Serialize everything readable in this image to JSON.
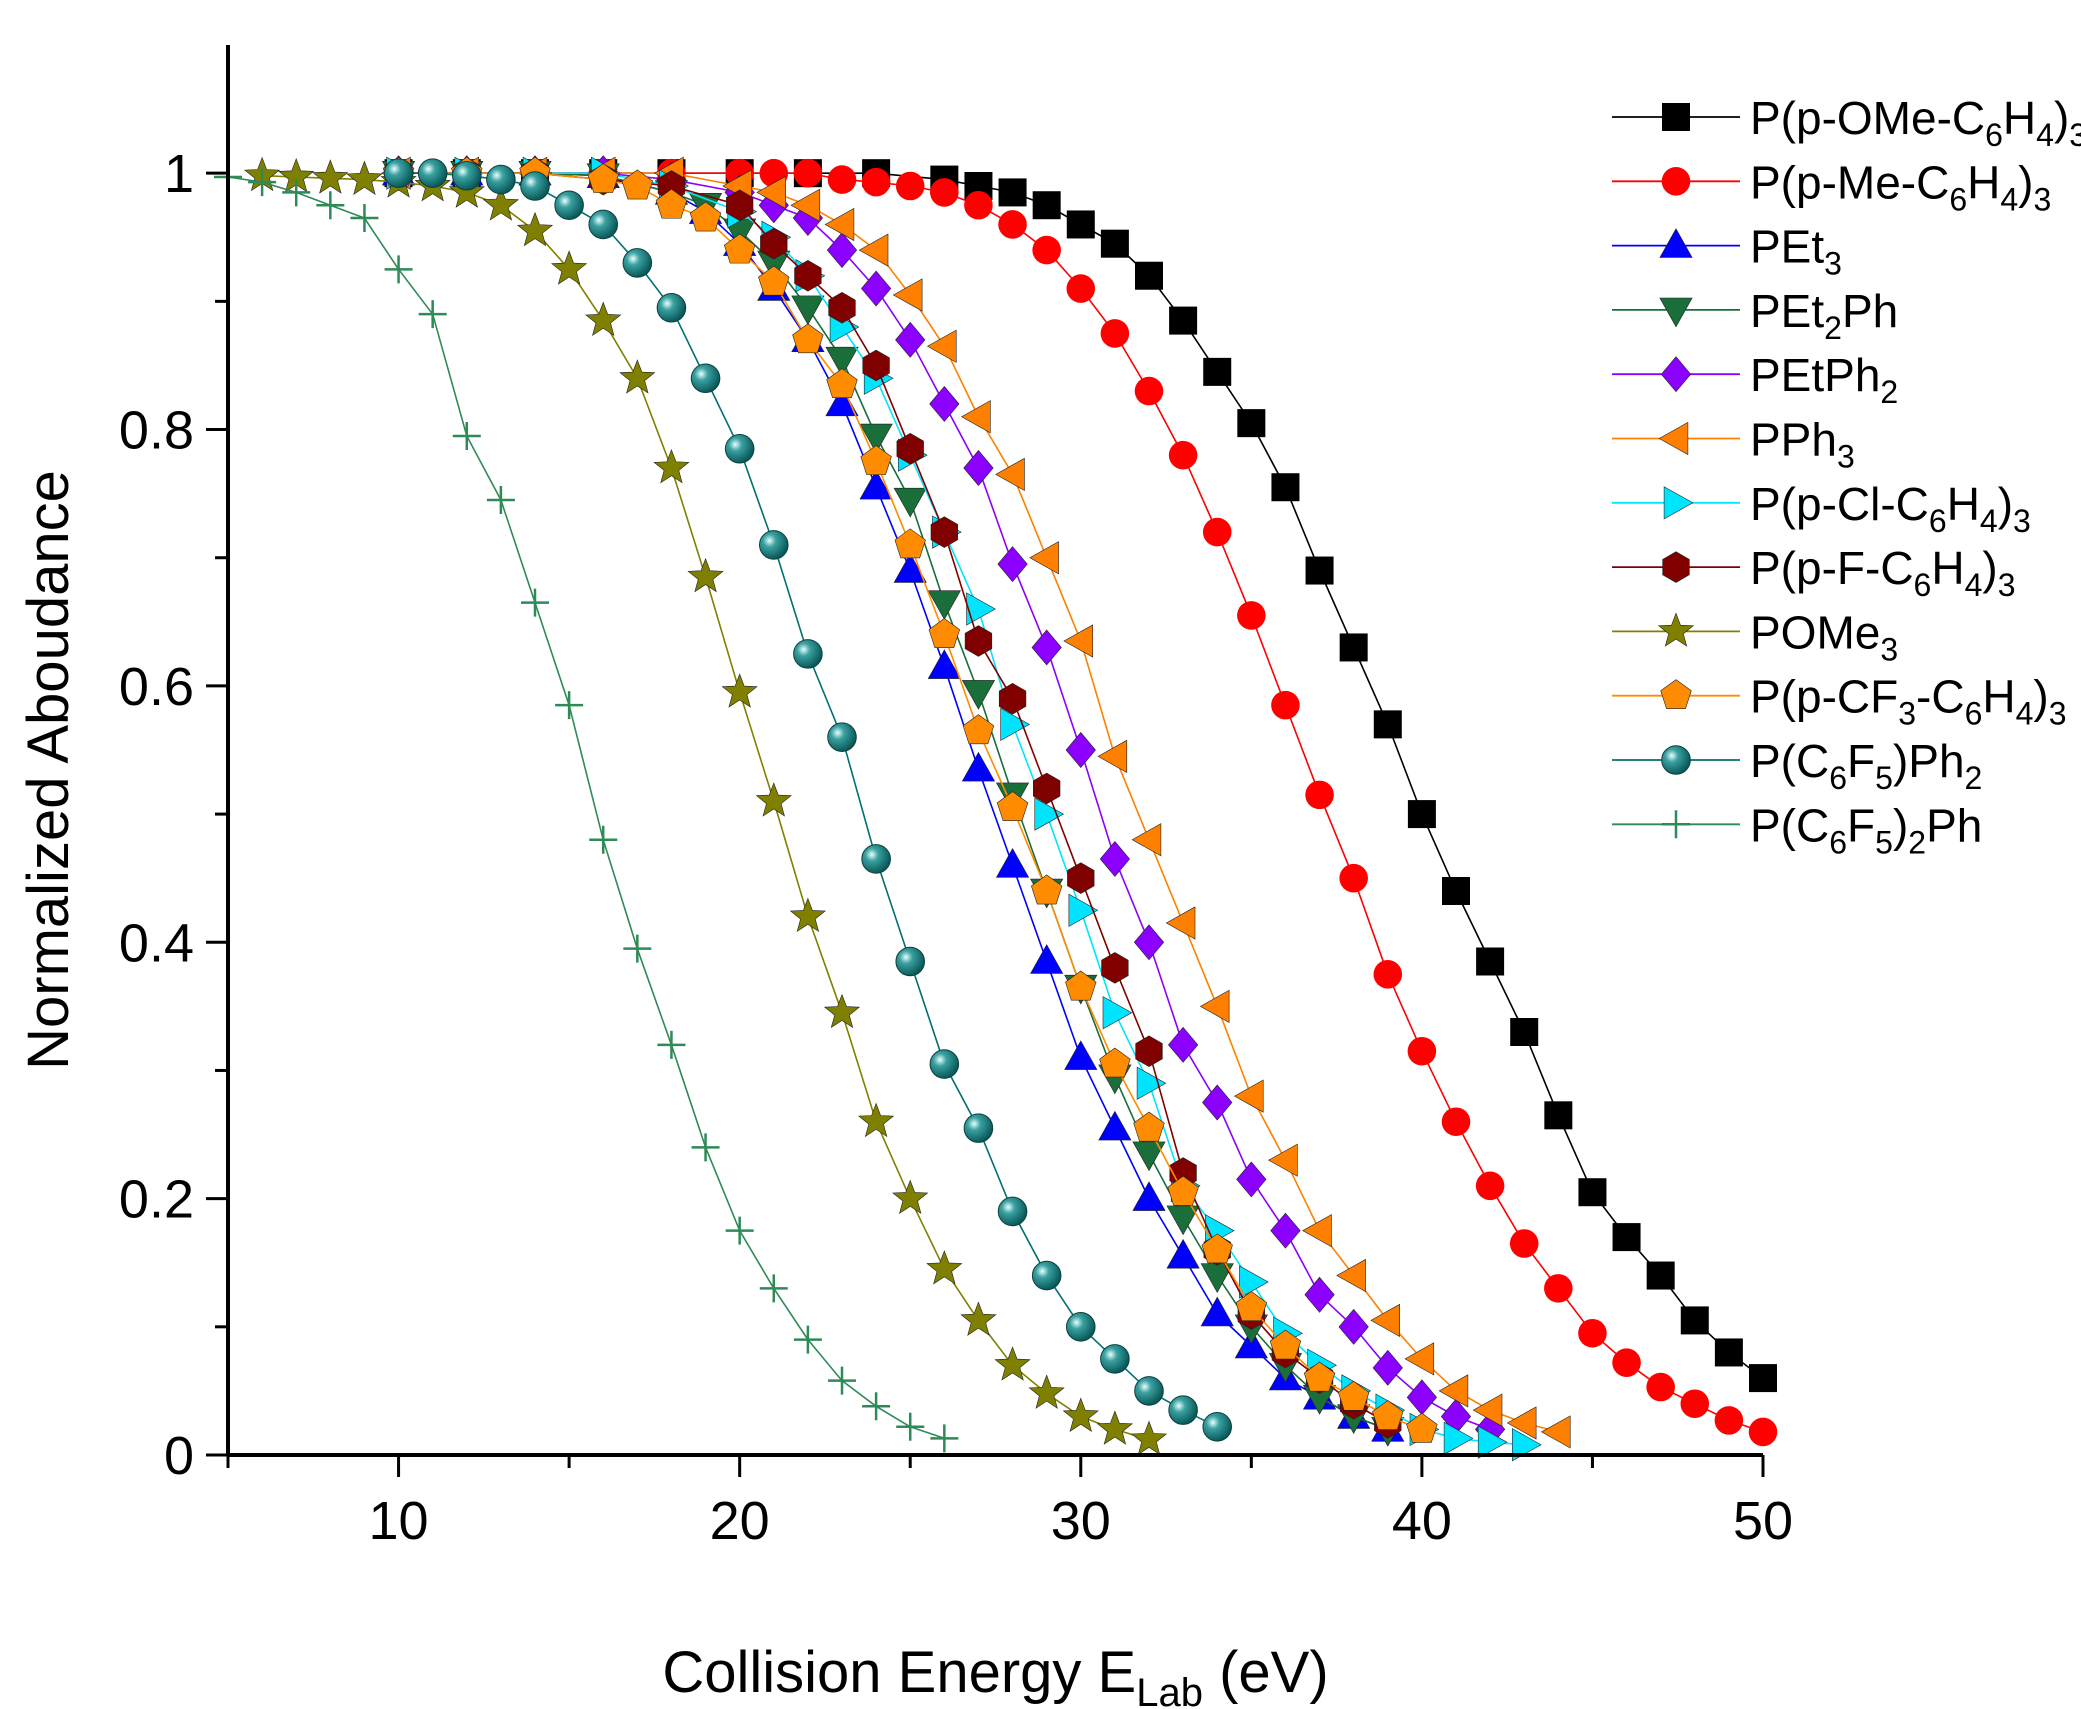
{
  "chart_data": {
    "type": "line",
    "xlabel": "Collision Energy E",
    "xlabel_sub": "Lab",
    "xlabel_unit": " (eV)",
    "ylabel": "Normalized Aboudance",
    "xlim": [
      5,
      50
    ],
    "ylim": [
      0,
      1.1
    ],
    "x_ticks": [
      "10",
      "20",
      "30",
      "40",
      "50"
    ],
    "y_ticks": [
      "0",
      "0.2",
      "0.4",
      "0.6",
      "0.8",
      "1"
    ],
    "grid": false,
    "legend_position": "right",
    "series": [
      {
        "name": "P(p-OMe-C6H4)3",
        "label_parts": [
          [
            "P(p-OMe-C",
            ""
          ],
          [
            "6",
            "sub"
          ],
          [
            "H",
            ""
          ],
          [
            "4",
            "sub"
          ],
          [
            ")",
            ""
          ],
          [
            "3",
            "sub"
          ]
        ],
        "color": "#000000",
        "marker": "square",
        "x": [
          10,
          12,
          14,
          16,
          18,
          20,
          22,
          24,
          26,
          27,
          28,
          29,
          30,
          31,
          32,
          33,
          34,
          35,
          36,
          37,
          38,
          39,
          40,
          41,
          42,
          43,
          44,
          45,
          46,
          47,
          48,
          49,
          50
        ],
        "y": [
          1,
          1,
          1,
          1,
          1,
          1,
          1,
          1,
          0.995,
          0.99,
          0.985,
          0.975,
          0.96,
          0.945,
          0.92,
          0.885,
          0.845,
          0.805,
          0.755,
          0.69,
          0.63,
          0.57,
          0.5,
          0.44,
          0.385,
          0.33,
          0.265,
          0.205,
          0.17,
          0.14,
          0.105,
          0.08,
          0.06
        ]
      },
      {
        "name": "P(p-Me-C6H4)3",
        "label_parts": [
          [
            "P(p-Me-C",
            ""
          ],
          [
            "6",
            "sub"
          ],
          [
            "H",
            ""
          ],
          [
            "4",
            "sub"
          ],
          [
            ")",
            ""
          ],
          [
            "3",
            "sub"
          ]
        ],
        "color": "#ff0000",
        "marker": "circle",
        "x": [
          10,
          12,
          14,
          16,
          18,
          20,
          21,
          22,
          23,
          24,
          25,
          26,
          27,
          28,
          29,
          30,
          31,
          32,
          33,
          34,
          35,
          36,
          37,
          38,
          39,
          40,
          41,
          42,
          43,
          44,
          45,
          46,
          47,
          48,
          49,
          50
        ],
        "y": [
          1,
          1,
          1,
          1,
          1,
          1,
          1,
          1,
          0.995,
          0.993,
          0.99,
          0.985,
          0.975,
          0.96,
          0.94,
          0.91,
          0.875,
          0.83,
          0.78,
          0.72,
          0.655,
          0.585,
          0.515,
          0.45,
          0.375,
          0.315,
          0.26,
          0.21,
          0.165,
          0.13,
          0.095,
          0.072,
          0.053,
          0.04,
          0.027,
          0.018
        ]
      },
      {
        "name": "PEt3",
        "label_parts": [
          [
            "PEt",
            ""
          ],
          [
            "3",
            "sub"
          ]
        ],
        "color": "#0000ff",
        "marker": "triangle-up",
        "x": [
          10,
          12,
          14,
          16,
          18,
          19,
          20,
          21,
          22,
          23,
          24,
          25,
          26,
          27,
          28,
          29,
          30,
          31,
          32,
          33,
          34,
          35,
          36,
          37,
          38,
          39
        ],
        "y": [
          1,
          1,
          1,
          0.998,
          0.985,
          0.97,
          0.945,
          0.91,
          0.87,
          0.82,
          0.755,
          0.69,
          0.615,
          0.535,
          0.46,
          0.385,
          0.31,
          0.255,
          0.2,
          0.155,
          0.11,
          0.085,
          0.06,
          0.045,
          0.03,
          0.02
        ]
      },
      {
        "name": "PEt2Ph",
        "label_parts": [
          [
            "PEt",
            ""
          ],
          [
            "2",
            "sub"
          ],
          [
            "Ph",
            ""
          ]
        ],
        "color": "#1a6e3a",
        "marker": "triangle-down",
        "x": [
          10,
          12,
          14,
          16,
          18,
          19,
          20,
          21,
          22,
          23,
          24,
          25,
          26,
          27,
          28,
          29,
          30,
          31,
          32,
          33,
          34,
          35,
          36,
          37,
          38,
          39
        ],
        "y": [
          1,
          1,
          1,
          0.998,
          0.985,
          0.975,
          0.955,
          0.93,
          0.895,
          0.855,
          0.795,
          0.745,
          0.665,
          0.595,
          0.515,
          0.44,
          0.365,
          0.295,
          0.235,
          0.185,
          0.14,
          0.1,
          0.07,
          0.045,
          0.03,
          0.02
        ]
      },
      {
        "name": "PEtPh2",
        "label_parts": [
          [
            "PEtPh",
            ""
          ],
          [
            "2",
            "sub"
          ]
        ],
        "color": "#8b00ff",
        "marker": "diamond",
        "x": [
          10,
          12,
          14,
          16,
          18,
          20,
          21,
          22,
          23,
          24,
          25,
          26,
          27,
          28,
          29,
          30,
          31,
          32,
          33,
          34,
          35,
          36,
          37,
          38,
          39,
          40,
          41,
          42
        ],
        "y": [
          1,
          1,
          1,
          1,
          0.995,
          0.985,
          0.975,
          0.965,
          0.94,
          0.91,
          0.87,
          0.82,
          0.77,
          0.695,
          0.63,
          0.55,
          0.465,
          0.4,
          0.32,
          0.275,
          0.215,
          0.175,
          0.125,
          0.1,
          0.068,
          0.045,
          0.03,
          0.02
        ]
      },
      {
        "name": "PPh3",
        "label_parts": [
          [
            "PPh",
            ""
          ],
          [
            "3",
            "sub"
          ]
        ],
        "color": "#ff8000",
        "marker": "triangle-left",
        "x": [
          10,
          12,
          14,
          16,
          18,
          20,
          21,
          22,
          23,
          24,
          25,
          26,
          27,
          28,
          29,
          30,
          31,
          32,
          33,
          34,
          35,
          36,
          37,
          38,
          39,
          40,
          41,
          42,
          43,
          44
        ],
        "y": [
          1,
          1,
          1,
          1,
          1,
          0.99,
          0.985,
          0.975,
          0.96,
          0.94,
          0.905,
          0.865,
          0.81,
          0.765,
          0.7,
          0.635,
          0.545,
          0.48,
          0.415,
          0.35,
          0.28,
          0.23,
          0.175,
          0.14,
          0.105,
          0.075,
          0.05,
          0.035,
          0.025,
          0.018
        ]
      },
      {
        "name": "P(p-Cl-C6H4)3",
        "label_parts": [
          [
            "P(p-Cl-C",
            ""
          ],
          [
            "6",
            "sub"
          ],
          [
            "H",
            ""
          ],
          [
            "4",
            "sub"
          ],
          [
            ")",
            ""
          ],
          [
            "3",
            "sub"
          ]
        ],
        "color": "#00e5ff",
        "marker": "triangle-right",
        "x": [
          10,
          12,
          14,
          16,
          18,
          20,
          21,
          22,
          23,
          24,
          25,
          26,
          27,
          28,
          29,
          30,
          31,
          32,
          33,
          34,
          35,
          36,
          37,
          38,
          39,
          40,
          41,
          42,
          43
        ],
        "y": [
          1,
          1,
          1,
          1,
          0.99,
          0.97,
          0.95,
          0.92,
          0.88,
          0.84,
          0.78,
          0.72,
          0.66,
          0.57,
          0.5,
          0.425,
          0.345,
          0.29,
          0.21,
          0.175,
          0.135,
          0.095,
          0.07,
          0.05,
          0.035,
          0.02,
          0.013,
          0.01,
          0.008
        ]
      },
      {
        "name": "P(p-F-C6H4)3",
        "label_parts": [
          [
            "P(p-F-C",
            ""
          ],
          [
            "6",
            "sub"
          ],
          [
            "H",
            ""
          ],
          [
            "4",
            "sub"
          ],
          [
            ")",
            ""
          ],
          [
            "3",
            "sub"
          ]
        ],
        "color": "#800000",
        "marker": "hexagon",
        "x": [
          10,
          12,
          14,
          16,
          18,
          20,
          21,
          22,
          23,
          24,
          25,
          26,
          27,
          28,
          29,
          30,
          31,
          32,
          33,
          34,
          35,
          36,
          37,
          38,
          39
        ],
        "y": [
          1,
          1,
          1,
          0.995,
          0.99,
          0.975,
          0.945,
          0.92,
          0.895,
          0.85,
          0.785,
          0.72,
          0.635,
          0.59,
          0.52,
          0.45,
          0.38,
          0.315,
          0.22,
          0.16,
          0.11,
          0.08,
          0.06,
          0.04,
          0.025
        ]
      },
      {
        "name": "POMe3",
        "label_parts": [
          [
            "POMe",
            ""
          ],
          [
            "3",
            "sub"
          ]
        ],
        "color": "#808000",
        "marker": "star",
        "x": [
          6,
          7,
          8,
          9,
          10,
          11,
          12,
          13,
          14,
          15,
          16,
          17,
          18,
          19,
          20,
          21,
          22,
          23,
          24,
          25,
          26,
          27,
          28,
          29,
          30,
          31,
          32
        ],
        "y": [
          0.998,
          0.997,
          0.996,
          0.995,
          0.993,
          0.99,
          0.985,
          0.975,
          0.955,
          0.925,
          0.885,
          0.84,
          0.77,
          0.685,
          0.595,
          0.51,
          0.42,
          0.345,
          0.26,
          0.2,
          0.145,
          0.105,
          0.07,
          0.048,
          0.03,
          0.02,
          0.012
        ]
      },
      {
        "name": "P(p-CF3-C6H4)3",
        "label_parts": [
          [
            "P(p-CF",
            ""
          ],
          [
            "3",
            "sub"
          ],
          [
            "-C",
            ""
          ],
          [
            "6",
            "sub"
          ],
          [
            "H",
            ""
          ],
          [
            "4",
            "sub"
          ],
          [
            ")",
            ""
          ],
          [
            "3",
            "sub"
          ]
        ],
        "color": "#ff8c00",
        "marker": "pentagon",
        "x": [
          10,
          12,
          14,
          16,
          17,
          18,
          19,
          20,
          21,
          22,
          23,
          24,
          25,
          26,
          27,
          28,
          29,
          30,
          31,
          32,
          33,
          34,
          35,
          36,
          37,
          38,
          39,
          40
        ],
        "y": [
          1,
          1,
          1,
          0.995,
          0.99,
          0.975,
          0.965,
          0.94,
          0.915,
          0.87,
          0.835,
          0.775,
          0.71,
          0.64,
          0.565,
          0.505,
          0.44,
          0.365,
          0.305,
          0.255,
          0.205,
          0.16,
          0.115,
          0.085,
          0.06,
          0.045,
          0.03,
          0.02
        ]
      },
      {
        "name": "P(C6F5)Ph2",
        "label_parts": [
          [
            "P(C",
            ""
          ],
          [
            "6",
            "sub"
          ],
          [
            "F",
            ""
          ],
          [
            "5",
            "sub"
          ],
          [
            ")Ph",
            ""
          ],
          [
            "2",
            "sub"
          ]
        ],
        "color": "#007070",
        "marker": "ball",
        "x": [
          10,
          11,
          12,
          13,
          14,
          15,
          16,
          17,
          18,
          19,
          20,
          21,
          22,
          23,
          24,
          25,
          26,
          27,
          28,
          29,
          30,
          31,
          32,
          33,
          34
        ],
        "y": [
          1,
          1,
          0.998,
          0.995,
          0.99,
          0.975,
          0.96,
          0.93,
          0.895,
          0.84,
          0.785,
          0.71,
          0.625,
          0.56,
          0.465,
          0.385,
          0.305,
          0.255,
          0.19,
          0.14,
          0.1,
          0.075,
          0.05,
          0.035,
          0.022
        ]
      },
      {
        "name": "P(C6F5)2Ph",
        "label_parts": [
          [
            "P(C",
            ""
          ],
          [
            "6",
            "sub"
          ],
          [
            "F",
            ""
          ],
          [
            "5",
            "sub"
          ],
          [
            ")",
            ""
          ],
          [
            "2",
            "sub"
          ],
          [
            "Ph",
            ""
          ]
        ],
        "color": "#2e8b57",
        "marker": "plus",
        "x": [
          5,
          6,
          7,
          8,
          9,
          10,
          11,
          12,
          13,
          14,
          15,
          16,
          17,
          18,
          19,
          20,
          21,
          22,
          23,
          24,
          25,
          26
        ],
        "y": [
          0.997,
          0.993,
          0.985,
          0.975,
          0.965,
          0.925,
          0.89,
          0.795,
          0.745,
          0.665,
          0.585,
          0.48,
          0.395,
          0.32,
          0.24,
          0.175,
          0.13,
          0.09,
          0.058,
          0.038,
          0.022,
          0.013
        ]
      }
    ]
  }
}
